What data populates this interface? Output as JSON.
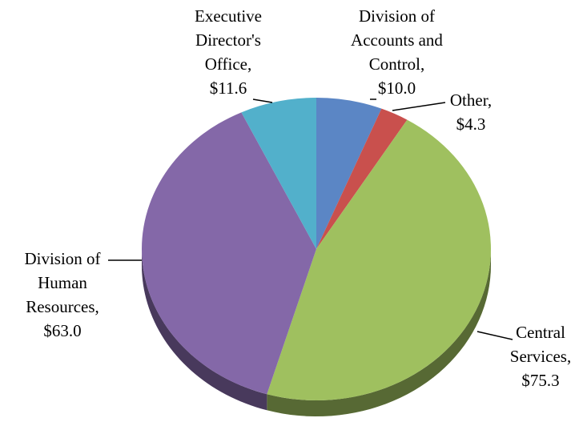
{
  "chart_data": {
    "type": "pie",
    "categories": [
      "Division of Accounts and Control,",
      "Other,",
      "Central Services,",
      "Division of Human Resources,",
      "Executive Director's Office,"
    ],
    "values": [
      10.0,
      4.3,
      75.3,
      63.0,
      11.6
    ],
    "value_labels": [
      "$10.0",
      "$4.3",
      "$75.3",
      "$63.0",
      "$11.6"
    ],
    "colors": [
      "#5b86c5",
      "#c9504d",
      "#9fc05f",
      "#8468a8",
      "#52b0cb"
    ]
  }
}
